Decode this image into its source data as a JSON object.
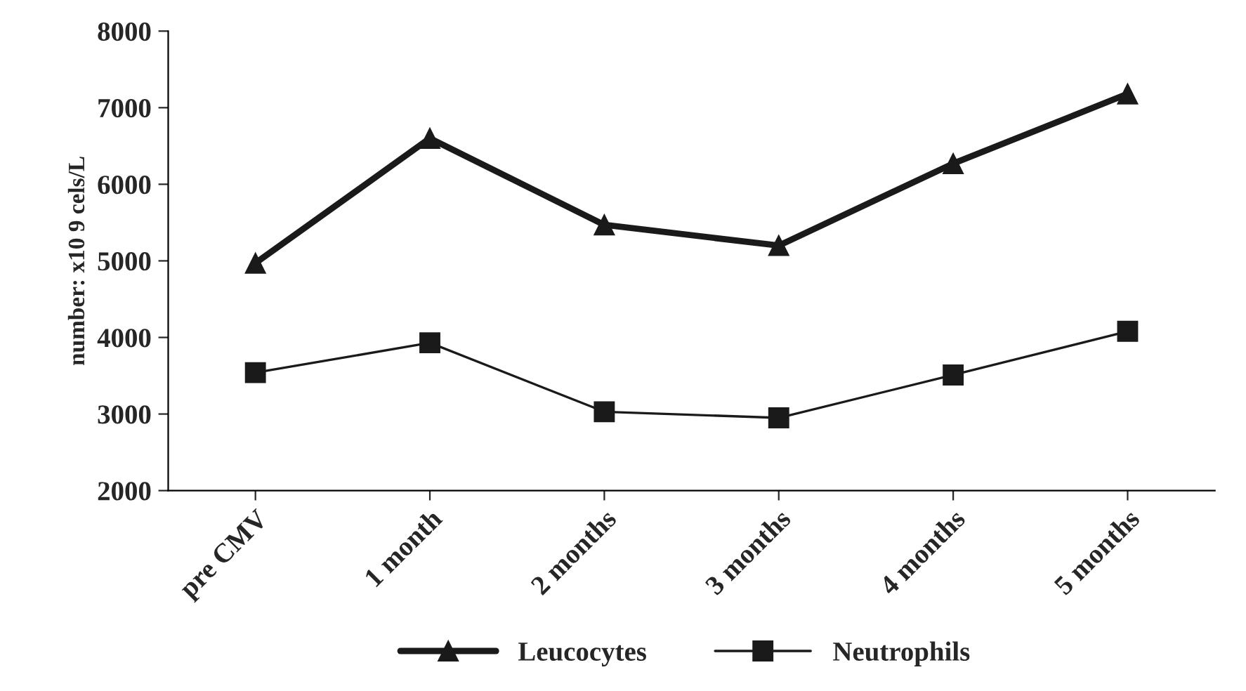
{
  "chart_data": {
    "type": "line",
    "ylabel": "number: x10 9 cels/L",
    "categories": [
      "pre CMV",
      "1 month",
      "2 months",
      "3 months",
      "4 months",
      "5 months"
    ],
    "series": [
      {
        "name": "Leucocytes",
        "color": "#1a1a1a",
        "marker": "triangle",
        "values": [
          4970,
          6600,
          5470,
          5200,
          6270,
          7180
        ]
      },
      {
        "name": "Neutrophils",
        "color": "#1a1a1a",
        "marker": "square",
        "values": [
          3540,
          3930,
          3030,
          2950,
          3510,
          4080
        ]
      }
    ],
    "ylim": [
      2000,
      8000
    ],
    "yticks": [
      2000,
      3000,
      4000,
      5000,
      6000,
      7000,
      8000
    ],
    "grid": false,
    "legend": "bottom"
  }
}
